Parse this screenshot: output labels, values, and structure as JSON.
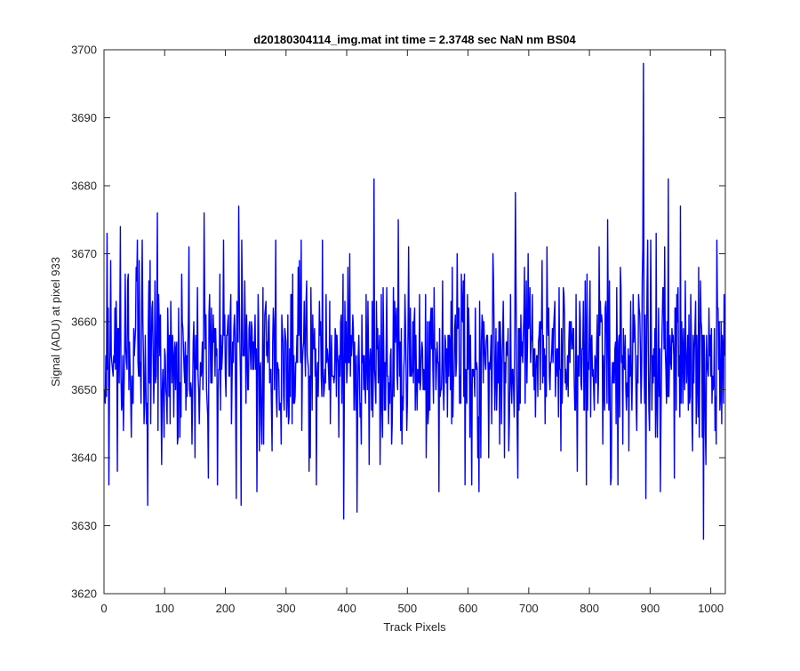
{
  "chart_data": {
    "type": "line",
    "title": "d20180304114_img.mat int time = 2.3748 sec  NaN nm BS04",
    "xlabel": "Track Pixels",
    "ylabel": "Signal (ADU) at pixel 933",
    "xlim": [
      0,
      1024
    ],
    "ylim": [
      3620,
      3700
    ],
    "x_ticks": [
      0,
      100,
      200,
      300,
      400,
      500,
      600,
      700,
      800,
      900,
      1000
    ],
    "y_ticks": [
      3620,
      3630,
      3640,
      3650,
      3660,
      3670,
      3680,
      3690,
      3700
    ],
    "x_tick_labels": [
      "0",
      "100",
      "200",
      "300",
      "400",
      "500",
      "600",
      "700",
      "800",
      "900",
      "1000"
    ],
    "y_tick_labels": [
      "3620",
      "3630",
      "3640",
      "3650",
      "3660",
      "3670",
      "3680",
      "3690",
      "3700"
    ],
    "grid": false,
    "series": [
      {
        "color": "#0000ff",
        "noise": {
          "count": 1024,
          "mean": 3655,
          "std": 6.5,
          "min": 3631,
          "max": 3677,
          "seed": 933
        },
        "points": [
          [
            0,
            3650
          ],
          [
            5,
            3673
          ],
          [
            11,
            3669
          ],
          [
            16,
            3655
          ],
          [
            22,
            3638
          ],
          [
            27,
            3674
          ],
          [
            35,
            3667
          ],
          [
            48,
            3648
          ],
          [
            55,
            3672
          ],
          [
            72,
            3633
          ],
          [
            88,
            3676
          ],
          [
            95,
            3639
          ],
          [
            140,
            3671
          ],
          [
            150,
            3640
          ],
          [
            165,
            3676
          ],
          [
            172,
            3637
          ],
          [
            187,
            3636
          ],
          [
            197,
            3672
          ],
          [
            210,
            3645
          ],
          [
            218,
            3634
          ],
          [
            222,
            3677
          ],
          [
            226,
            3633
          ],
          [
            252,
            3635
          ],
          [
            265,
            3661
          ],
          [
            305,
            3646
          ],
          [
            325,
            3672
          ],
          [
            340,
            3640
          ],
          [
            350,
            3636
          ],
          [
            360,
            3672
          ],
          [
            395,
            3631
          ],
          [
            405,
            3670
          ],
          [
            417,
            3632
          ],
          [
            445,
            3681
          ],
          [
            455,
            3639
          ],
          [
            485,
            3675
          ],
          [
            502,
            3671
          ],
          [
            552,
            3635
          ],
          [
            582,
            3670
          ],
          [
            595,
            3636
          ],
          [
            618,
            3635
          ],
          [
            660,
            3640
          ],
          [
            678,
            3679
          ],
          [
            682,
            3637
          ],
          [
            730,
            3671
          ],
          [
            780,
            3638
          ],
          [
            830,
            3675
          ],
          [
            847,
            3636
          ],
          [
            889,
            3698
          ],
          [
            893,
            3634
          ],
          [
            910,
            3673
          ],
          [
            917,
            3635
          ],
          [
            930,
            3681
          ],
          [
            940,
            3637
          ],
          [
            950,
            3677
          ],
          [
            988,
            3628
          ],
          [
            992,
            3639
          ],
          [
            1010,
            3672
          ],
          [
            1023,
            3655
          ]
        ]
      }
    ]
  }
}
